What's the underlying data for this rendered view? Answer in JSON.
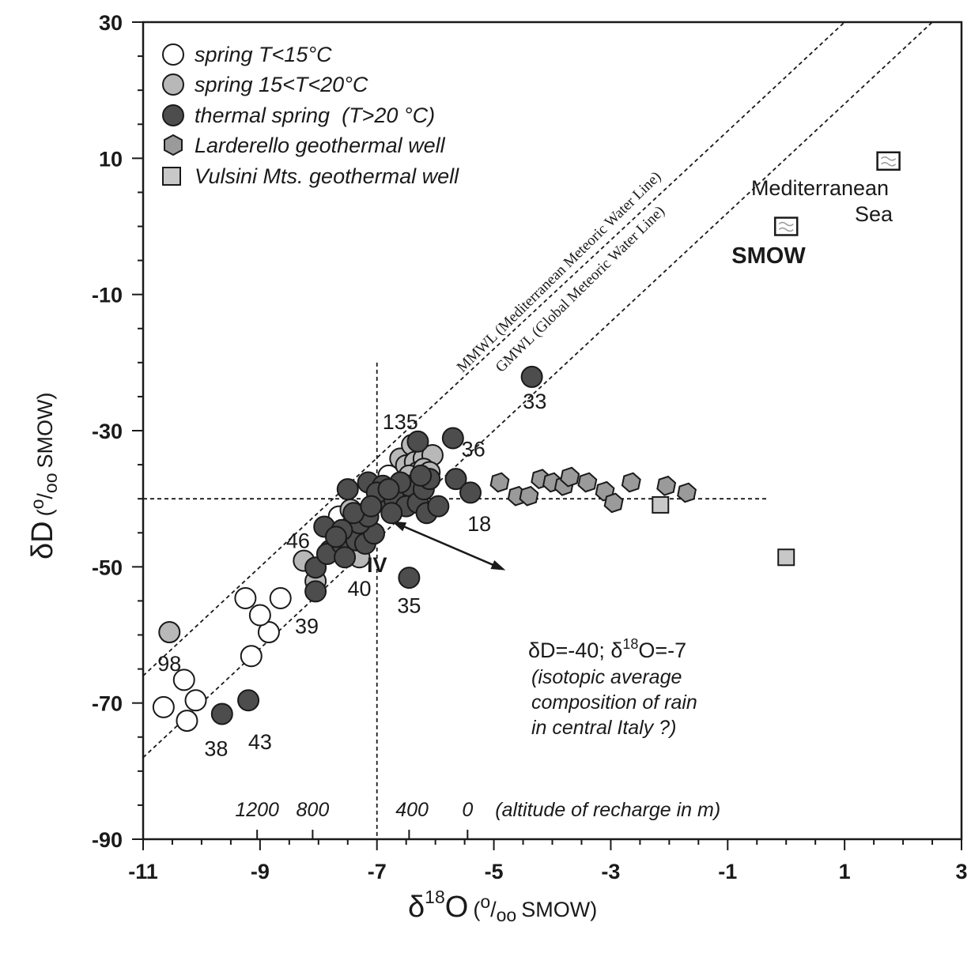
{
  "chart_data": {
    "type": "scatter",
    "xlabel_prefix": "δ",
    "xlabel_sup": "18",
    "xlabel_main": "O",
    "xlabel_unit_sup": "o",
    "xlabel_unit_slash": "/",
    "xlabel_unit_sub": "oo",
    "xlabel_unit_text": "SMOW",
    "ylabel_main": "δD",
    "ylabel_unit_sup": "o",
    "ylabel_unit_slash": "/",
    "ylabel_unit_sub": "oo",
    "ylabel_unit_text": "SMOW",
    "xlim": [
      -11,
      3
    ],
    "ylim": [
      -90,
      30
    ],
    "xticks": [
      "-11",
      "-9",
      "-7",
      "-5",
      "-3",
      "-1",
      "1",
      "3"
    ],
    "yticks": [
      "-90",
      "-70",
      "-50",
      "-30",
      "-10",
      "10",
      "30"
    ],
    "legend": [
      {
        "key": "cold",
        "label": "spring T<15°C"
      },
      {
        "key": "warm",
        "label": "spring 15<T<20°C"
      },
      {
        "key": "thermal",
        "label": "thermal spring  (T>20 °C)"
      },
      {
        "key": "larderello",
        "label": "Larderello geothermal well"
      },
      {
        "key": "vulsini",
        "label": "Vulsini Mts. geothermal well"
      }
    ],
    "colors": {
      "cold": "#ffffff",
      "warm": "#b8b8b8",
      "thermal": "#4d4d4d",
      "larderello": "#9a9a9a",
      "vulsini": "#c8c8c8",
      "stroke": "#1a1a1a"
    },
    "series": [
      {
        "name": "spring T<15°C",
        "key": "cold",
        "points": [
          [
            -10.65,
            -70.6
          ],
          [
            -10.3,
            -66.6
          ],
          [
            -10.25,
            -72.6
          ],
          [
            -10.1,
            -69.6
          ],
          [
            -9.15,
            -63.1
          ],
          [
            -8.85,
            -59.6
          ],
          [
            -9.0,
            -57.1
          ],
          [
            -9.25,
            -54.6
          ],
          [
            -8.65,
            -54.6
          ],
          [
            -7.65,
            -42.6
          ],
          [
            -7.45,
            -44.1
          ],
          [
            -6.8,
            -36.6
          ]
        ]
      },
      {
        "name": "spring 15<T<20°C",
        "key": "warm",
        "points": [
          [
            -10.55,
            -59.6
          ],
          [
            -8.25,
            -49.1
          ],
          [
            -8.05,
            -52.1
          ],
          [
            -7.3,
            -48.6
          ],
          [
            -7.45,
            -41.6
          ],
          [
            -7.2,
            -42.1
          ],
          [
            -6.6,
            -34.1
          ],
          [
            -6.5,
            -35.1
          ],
          [
            -6.4,
            -32.1
          ],
          [
            -6.35,
            -34.6
          ],
          [
            -6.2,
            -34.1
          ],
          [
            -6.05,
            -33.6
          ],
          [
            -6.3,
            -36.1
          ],
          [
            -6.45,
            -36.6
          ],
          [
            -6.2,
            -35.6
          ],
          [
            -6.1,
            -36.1
          ]
        ]
      },
      {
        "name": "thermal spring (T>20 °C)",
        "key": "thermal",
        "points": [
          [
            -4.35,
            -22.1
          ],
          [
            -5.7,
            -31.1
          ],
          [
            -6.3,
            -31.6
          ],
          [
            -5.65,
            -37.1
          ],
          [
            -5.4,
            -39.1
          ],
          [
            -6.45,
            -51.6
          ],
          [
            -9.2,
            -69.6
          ],
          [
            -9.65,
            -71.6
          ],
          [
            -7.9,
            -44.1
          ],
          [
            -8.05,
            -50.1
          ],
          [
            -8.05,
            -53.6
          ],
          [
            -7.8,
            -47.6
          ],
          [
            -7.85,
            -48.1
          ],
          [
            -7.6,
            -46.6
          ],
          [
            -7.55,
            -48.6
          ],
          [
            -7.35,
            -46.1
          ],
          [
            -7.2,
            -46.6
          ],
          [
            -7.05,
            -45.1
          ],
          [
            -7.3,
            -43.6
          ],
          [
            -7.15,
            -42.6
          ],
          [
            -7.4,
            -42.1
          ],
          [
            -7.5,
            -38.6
          ],
          [
            -7.15,
            -37.6
          ],
          [
            -6.9,
            -38.1
          ],
          [
            -6.85,
            -40.1
          ],
          [
            -6.6,
            -39.6
          ],
          [
            -6.45,
            -38.1
          ],
          [
            -6.7,
            -40.1
          ],
          [
            -6.5,
            -41.1
          ],
          [
            -6.3,
            -40.6
          ],
          [
            -6.15,
            -42.1
          ],
          [
            -5.95,
            -41.1
          ],
          [
            -6.2,
            -38.6
          ],
          [
            -6.1,
            -37.1
          ],
          [
            -6.25,
            -36.6
          ],
          [
            -6.75,
            -42.1
          ],
          [
            -7.0,
            -39.1
          ],
          [
            -7.1,
            -41.1
          ],
          [
            -6.6,
            -37.6
          ],
          [
            -7.6,
            -44.6
          ],
          [
            -7.7,
            -45.6
          ],
          [
            -6.8,
            -38.6
          ]
        ]
      },
      {
        "name": "Larderello geothermal well",
        "key": "larderello",
        "points": [
          [
            -4.9,
            -37.6
          ],
          [
            -4.6,
            -39.6
          ],
          [
            -4.4,
            -39.6
          ],
          [
            -4.2,
            -37.1
          ],
          [
            -4.0,
            -37.6
          ],
          [
            -3.8,
            -38.1
          ],
          [
            -3.7,
            -36.8
          ],
          [
            -3.4,
            -37.6
          ],
          [
            -3.1,
            -38.9
          ],
          [
            -2.95,
            -40.6
          ],
          [
            -2.65,
            -37.6
          ],
          [
            -2.05,
            -38.1
          ],
          [
            -1.7,
            -39.1
          ]
        ]
      },
      {
        "name": "Vulsini Mts. geothermal well",
        "key": "vulsini",
        "points": [
          [
            -2.15,
            -40.9
          ],
          [
            0.0,
            -48.6
          ]
        ]
      },
      {
        "name": "SMOW",
        "key": "smow",
        "points": [
          [
            0.0,
            0.0
          ]
        ]
      },
      {
        "name": "Mediterranean Sea",
        "key": "medsea",
        "points": [
          [
            1.75,
            9.6
          ]
        ]
      }
    ],
    "lines": [
      {
        "name": "MMWL (Mediterranean Meteoric Water Line)",
        "slope": 8,
        "intercept": 22
      },
      {
        "name": "GMWL (Global Meteoric Water Line)",
        "slope": 8,
        "intercept": 10
      }
    ],
    "reference_lines": {
      "vertical_x": -7,
      "horizontal_y": -40
    },
    "point_labels": [
      {
        "text": "33",
        "x": -4.3,
        "y": -25.6
      },
      {
        "text": "135",
        "x": -6.6,
        "y": -28.6
      },
      {
        "text": "36",
        "x": -5.35,
        "y": -32.6
      },
      {
        "text": "18",
        "x": -5.25,
        "y": -43.6
      },
      {
        "text": "46",
        "x": -8.35,
        "y": -46.1
      },
      {
        "text": "IV",
        "x": -7.0,
        "y": -49.6
      },
      {
        "text": "40",
        "x": -7.3,
        "y": -53.1
      },
      {
        "text": "35",
        "x": -6.45,
        "y": -55.6
      },
      {
        "text": "39",
        "x": -8.2,
        "y": -58.6
      },
      {
        "text": "98",
        "x": -10.55,
        "y": -64.1
      },
      {
        "text": "38",
        "x": -9.75,
        "y": -76.6
      },
      {
        "text": "43",
        "x": -9.0,
        "y": -75.6
      }
    ],
    "annotations": {
      "smow": "SMOW",
      "med_line1": "Mediterranean",
      "med_line2": "Sea",
      "rain_line1_prefix": "δD=-40; δ",
      "rain_line1_sup": "18",
      "rain_line1_suffix": "O=-7",
      "rain_line2": "(isotopic average",
      "rain_line3": "composition of rain",
      "rain_line4": "in central Italy ?)",
      "mmwl": "MMWL (Mediterranean Meteoric Water Line)",
      "gmwl": "GMWL (Global Meteoric Water Line)"
    },
    "altitude_scale": [
      {
        "text": "1200",
        "x": -9.05
      },
      {
        "text": "800",
        "x": -8.1
      },
      {
        "text": "400",
        "x": -6.4
      },
      {
        "text": "0",
        "x": -5.45
      },
      {
        "text": "(altitude of recharge in m)",
        "x": -3.05
      }
    ],
    "arrow": {
      "from": [
        -4.8,
        -50.5
      ],
      "to": [
        -6.75,
        -43.3
      ]
    }
  }
}
